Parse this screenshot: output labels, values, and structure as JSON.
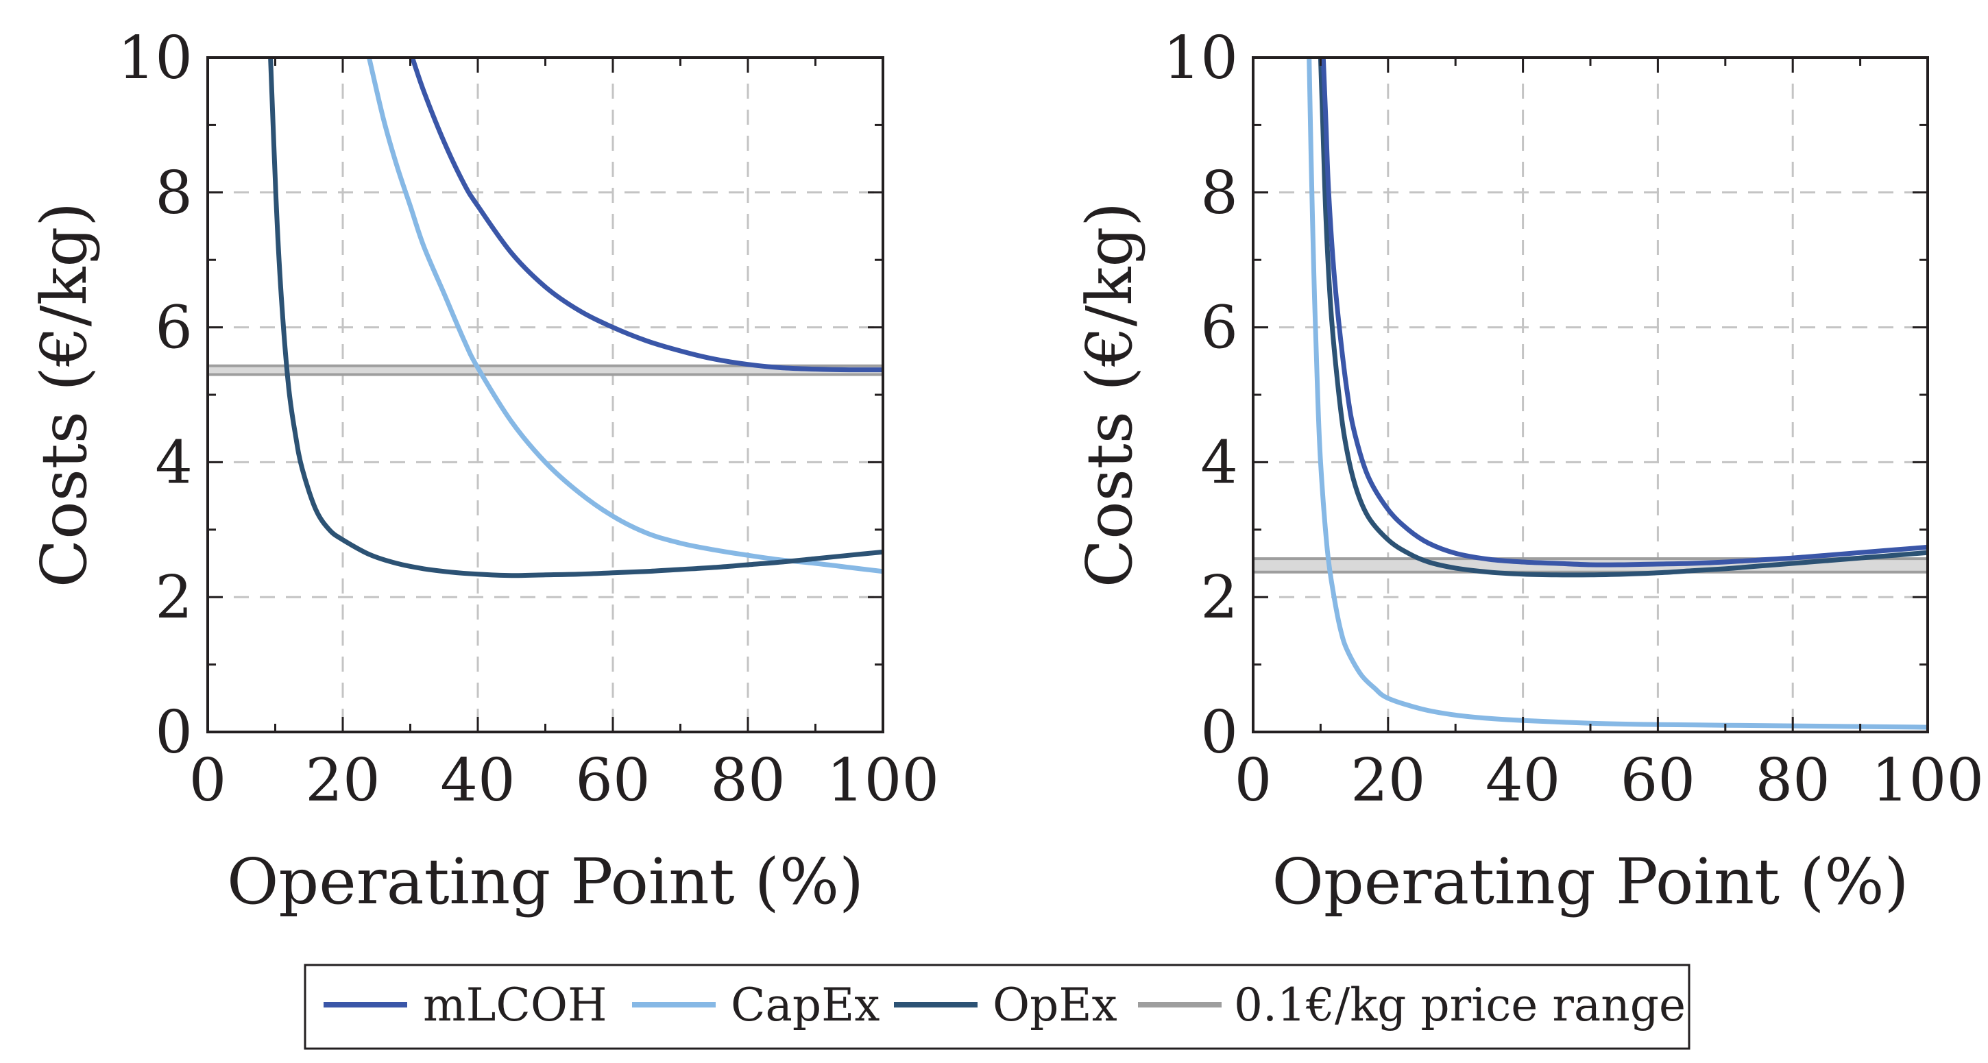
{
  "colors": {
    "mLCOH": "#3a56a8",
    "CapEx": "#86b8e5",
    "OpEx": "#2c5274",
    "price_range_line": "#9e9e9e",
    "price_range_band": "#d9d9d9",
    "grid": "#c4c4c4"
  },
  "legend": {
    "items": [
      {
        "key": "mLCOH",
        "label": "mLCOH"
      },
      {
        "key": "CapEx",
        "label": "CapEx"
      },
      {
        "key": "OpEx",
        "label": "OpEx"
      },
      {
        "key": "price_range",
        "label": "0.1€/kg price range"
      }
    ]
  },
  "chart_data": [
    {
      "type": "line",
      "title": "",
      "xlabel": "Operating Point (%)",
      "ylabel": "Costs (€/kg)",
      "xlim": [
        0,
        100
      ],
      "ylim": [
        0,
        10
      ],
      "xticks": [
        0,
        20,
        40,
        60,
        80,
        100
      ],
      "yticks": [
        0,
        2,
        4,
        6,
        8,
        10
      ],
      "grid": true,
      "price_range": {
        "low": 5.3,
        "high": 5.43
      },
      "series": [
        {
          "name": "mLCOH",
          "x": [
            30.3,
            32,
            35,
            38,
            40,
            45,
            50,
            55,
            60,
            65,
            70,
            75,
            80,
            85,
            90,
            95,
            100
          ],
          "y": [
            10,
            9.5,
            8.75,
            8.12,
            7.8,
            7.1,
            6.6,
            6.25,
            6.0,
            5.8,
            5.65,
            5.53,
            5.45,
            5.4,
            5.38,
            5.37,
            5.37
          ]
        },
        {
          "name": "CapEx",
          "x": [
            23.9,
            26,
            28,
            30,
            32,
            35,
            38,
            40,
            45,
            50,
            55,
            60,
            65,
            70,
            75,
            80,
            85,
            90,
            95,
            100
          ],
          "y": [
            10,
            9.1,
            8.4,
            7.8,
            7.2,
            6.5,
            5.8,
            5.4,
            4.6,
            4.0,
            3.55,
            3.2,
            2.95,
            2.8,
            2.7,
            2.62,
            2.55,
            2.5,
            2.44,
            2.38
          ]
        },
        {
          "name": "OpEx",
          "x": [
            9.3,
            9.8,
            10.3,
            11,
            12,
            13,
            14,
            16,
            18,
            20,
            24,
            28,
            32,
            36,
            40,
            45,
            50,
            55,
            60,
            65,
            70,
            75,
            80,
            85,
            90,
            95,
            100
          ],
          "y": [
            10,
            8.7,
            7.5,
            6.3,
            5.1,
            4.4,
            3.9,
            3.3,
            3.0,
            2.85,
            2.63,
            2.5,
            2.42,
            2.37,
            2.34,
            2.32,
            2.33,
            2.34,
            2.36,
            2.38,
            2.41,
            2.44,
            2.48,
            2.52,
            2.57,
            2.62,
            2.67
          ]
        }
      ]
    },
    {
      "type": "line",
      "title": "",
      "xlabel": "Operating Point (%)",
      "ylabel": "Costs (€/kg)",
      "xlim": [
        0,
        100
      ],
      "ylim": [
        0,
        10
      ],
      "xticks": [
        0,
        20,
        40,
        60,
        80,
        100
      ],
      "yticks": [
        0,
        2,
        4,
        6,
        8,
        10
      ],
      "grid": true,
      "price_range": {
        "low": 2.37,
        "high": 2.57
      },
      "series": [
        {
          "name": "mLCOH",
          "x": [
            10.4,
            10.8,
            11.2,
            12,
            13,
            14,
            15,
            17,
            20,
            23,
            26,
            30,
            35,
            40,
            45,
            50,
            55,
            60,
            65,
            70,
            75,
            80,
            85,
            90,
            95,
            100
          ],
          "y": [
            10,
            9.0,
            8.0,
            6.8,
            5.8,
            5.0,
            4.45,
            3.8,
            3.3,
            3.0,
            2.8,
            2.65,
            2.56,
            2.52,
            2.5,
            2.48,
            2.48,
            2.49,
            2.5,
            2.52,
            2.55,
            2.58,
            2.62,
            2.66,
            2.7,
            2.74
          ]
        },
        {
          "name": "CapEx",
          "x": [
            8.3,
            8.6,
            9.0,
            9.5,
            10,
            11,
            12,
            13,
            14,
            16,
            18,
            20,
            25,
            30,
            35,
            40,
            50,
            60,
            70,
            80,
            90,
            100
          ],
          "y": [
            10,
            8.5,
            6.8,
            5.2,
            4.0,
            2.7,
            2.0,
            1.5,
            1.2,
            0.85,
            0.65,
            0.5,
            0.34,
            0.25,
            0.2,
            0.17,
            0.13,
            0.11,
            0.1,
            0.09,
            0.08,
            0.07
          ]
        },
        {
          "name": "OpEx",
          "x": [
            10.0,
            10.4,
            10.8,
            11.5,
            12.5,
            13.5,
            15,
            17,
            20,
            23,
            26,
            30,
            35,
            40,
            45,
            50,
            55,
            60,
            65,
            70,
            75,
            80,
            85,
            90,
            95,
            100
          ],
          "y": [
            10,
            8.8,
            7.6,
            6.3,
            5.2,
            4.4,
            3.7,
            3.2,
            2.85,
            2.65,
            2.52,
            2.43,
            2.37,
            2.34,
            2.33,
            2.33,
            2.34,
            2.36,
            2.39,
            2.42,
            2.46,
            2.5,
            2.54,
            2.58,
            2.62,
            2.66
          ]
        }
      ]
    }
  ]
}
